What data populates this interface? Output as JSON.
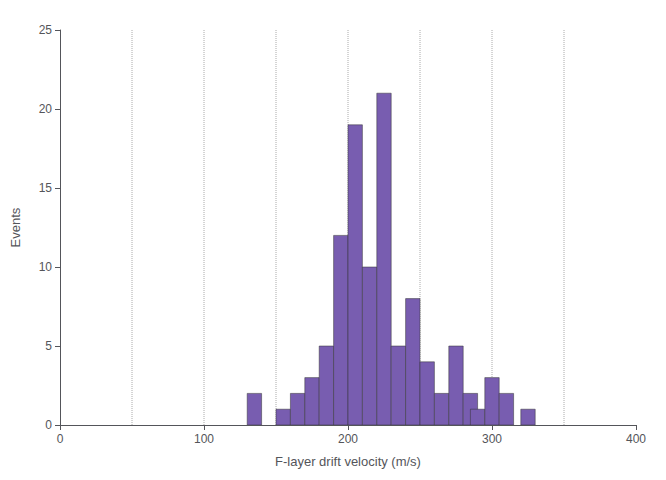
{
  "chart_data": {
    "type": "bar",
    "x": [
      130,
      150,
      160,
      170,
      180,
      190,
      200,
      210,
      220,
      230,
      240,
      250,
      260,
      270,
      280,
      285,
      295,
      305,
      320
    ],
    "values": [
      2,
      1,
      2,
      3,
      5,
      12,
      19,
      10,
      21,
      5,
      8,
      4,
      2,
      5,
      2,
      1,
      3,
      2,
      1
    ],
    "bin_width": 10,
    "vlines": [
      50,
      100,
      150,
      200,
      250,
      300,
      350
    ],
    "xlabel": "F-layer drift velocity (m/s)",
    "ylabel": "Events",
    "xlim": [
      0,
      400
    ],
    "xticks": [
      0,
      100,
      200,
      300,
      400
    ],
    "ylim": [
      0,
      25
    ],
    "yticks": [
      0,
      5,
      10,
      15,
      20,
      25
    ],
    "grid": false
  }
}
